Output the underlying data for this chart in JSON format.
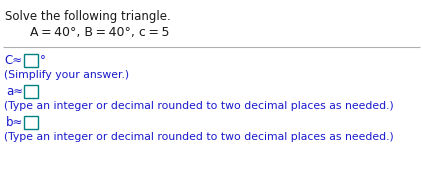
{
  "title": "Solve the following triangle.",
  "given_line1": "A = 40°, B = 40°, c = 5",
  "line1_note": "(Simplify your answer.)",
  "line2_note": "(Type an integer or decimal rounded to two decimal places as needed.)",
  "line3_note": "(Type an integer or decimal rounded to two decimal places as needed.)",
  "bg_color": "#ffffff",
  "text_color_black": "#1a1a1a",
  "text_color_blue": "#1a1acc",
  "box_edge_color": "#008080",
  "separator_color": "#b0b0b0",
  "title_fontsize": 8.5,
  "given_fontsize": 9.0,
  "body_fontsize": 8.5,
  "small_fontsize": 7.8
}
